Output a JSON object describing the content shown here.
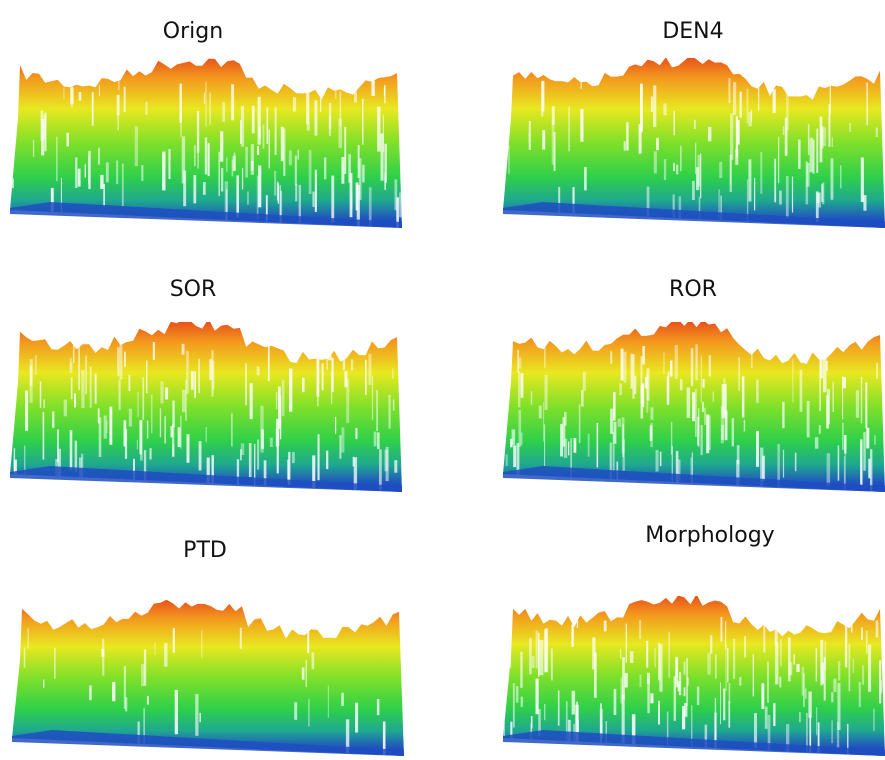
{
  "panels": [
    {
      "title": "Orign"
    },
    {
      "title": "DEN4"
    },
    {
      "title": "SOR"
    },
    {
      "title": "ROR"
    },
    {
      "title": "PTD"
    },
    {
      "title": "Morphology"
    }
  ]
}
